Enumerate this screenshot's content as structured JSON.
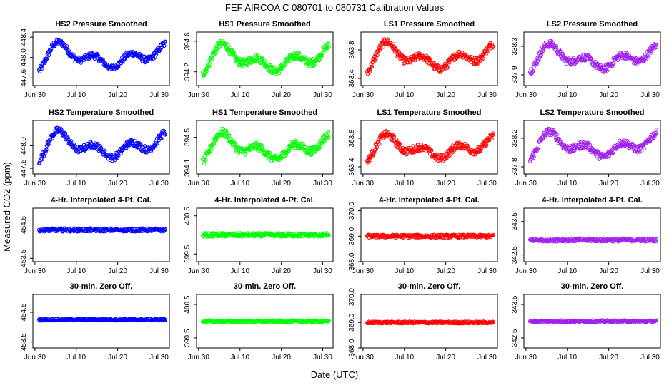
{
  "figure": {
    "title": "FEF   AIRCOA C   080701 to 080731   Calibration Values",
    "xlabel": "Date (UTC)",
    "ylabel": "Measured CO2 (ppm)"
  },
  "chart_data": [
    {
      "type": "scatter",
      "title": "HS2 Pressure Smoothed",
      "color": "#0000ff",
      "ylim": [
        447.45,
        448.5
      ],
      "yticks": [
        "447.6",
        "448.0",
        "448.4"
      ],
      "ytick_values": [
        447.6,
        448.0,
        448.4
      ],
      "pattern": "smooth",
      "center": 448.0,
      "amp": 0.36,
      "noise": 0.06,
      "xlim": [
        -0.5,
        32.5
      ],
      "xticks": [
        "Jun 30",
        "Jul 10",
        "Jul 20",
        "Jul 30"
      ],
      "xtick_values": [
        0,
        10,
        20,
        30
      ],
      "x": [
        1,
        31.5
      ]
    },
    {
      "type": "scatter",
      "title": "HS1 Pressure Smoothed",
      "color": "#00ff00",
      "ylim": [
        394.02,
        394.72
      ],
      "yticks": [
        "394.2",
        "394.6"
      ],
      "ytick_values": [
        394.2,
        394.6
      ],
      "pattern": "smooth",
      "center": 394.35,
      "amp": 0.25,
      "noise": 0.05,
      "xlim": [
        -0.5,
        32.5
      ],
      "xticks": [
        "Jun 30",
        "Jul 10",
        "Jul 20",
        "Jul 30"
      ],
      "xtick_values": [
        0,
        10,
        20,
        30
      ],
      "x": [
        1,
        31.5
      ]
    },
    {
      "type": "scatter",
      "title": "LS1 Pressure Smoothed",
      "color": "#ff0000",
      "ylim": [
        363.3,
        364.05
      ],
      "yticks": [
        "363.4",
        "363.8"
      ],
      "ytick_values": [
        363.4,
        363.8
      ],
      "pattern": "smooth",
      "center": 363.68,
      "amp": 0.27,
      "noise": 0.05,
      "xlim": [
        -0.5,
        32.5
      ],
      "xticks": [
        "Jun 30",
        "Jul 10",
        "Jul 20",
        "Jul 30"
      ],
      "xtick_values": [
        0,
        10,
        20,
        30
      ],
      "x": [
        1,
        31.5
      ]
    },
    {
      "type": "scatter",
      "title": "LS2 Pressure Smoothed",
      "color": "#a020f0",
      "ylim": [
        337.75,
        338.5
      ],
      "yticks": [
        "337.9",
        "338.3"
      ],
      "ytick_values": [
        337.9,
        338.3
      ],
      "pattern": "smooth",
      "center": 338.12,
      "amp": 0.25,
      "noise": 0.05,
      "xlim": [
        -0.5,
        32.5
      ],
      "xticks": [
        "Jun 30",
        "Jul 10",
        "Jul 20",
        "Jul 30"
      ],
      "xtick_values": [
        0,
        10,
        20,
        30
      ],
      "x": [
        1,
        31.5
      ]
    },
    {
      "type": "scatter",
      "title": "HS2 Temperature Smoothed",
      "color": "#0000ff",
      "ylim": [
        447.5,
        448.45
      ],
      "yticks": [
        "447.6",
        "448.0"
      ],
      "ytick_values": [
        447.6,
        448.0
      ],
      "pattern": "smooth",
      "center": 447.98,
      "amp": 0.34,
      "noise": 0.06,
      "xlim": [
        -0.5,
        32.5
      ],
      "xticks": [
        "Jun 30",
        "Jul 10",
        "Jul 20",
        "Jul 30"
      ],
      "xtick_values": [
        0,
        10,
        20,
        30
      ],
      "x": [
        1,
        31.5
      ]
    },
    {
      "type": "scatter",
      "title": "HS1 Temperature Smoothed",
      "color": "#00ff00",
      "ylim": [
        394.02,
        394.72
      ],
      "yticks": [
        "394.1",
        "394.5"
      ],
      "ytick_values": [
        394.1,
        394.5
      ],
      "pattern": "smooth",
      "center": 394.35,
      "amp": 0.25,
      "noise": 0.05,
      "xlim": [
        -0.5,
        32.5
      ],
      "xticks": [
        "Jun 30",
        "Jul 10",
        "Jul 20",
        "Jul 30"
      ],
      "xtick_values": [
        0,
        10,
        20,
        30
      ],
      "x": [
        1,
        31.5
      ]
    },
    {
      "type": "scatter",
      "title": "LS1 Temperature Smoothed",
      "color": "#ff0000",
      "ylim": [
        363.3,
        364.05
      ],
      "yticks": [
        "363.4",
        "363.8"
      ],
      "ytick_values": [
        363.4,
        363.8
      ],
      "pattern": "smooth",
      "center": 363.65,
      "amp": 0.24,
      "noise": 0.05,
      "xlim": [
        -0.5,
        32.5
      ],
      "xticks": [
        "Jun 30",
        "Jul 10",
        "Jul 20",
        "Jul 30"
      ],
      "xtick_values": [
        0,
        10,
        20,
        30
      ],
      "x": [
        1,
        31.5
      ]
    },
    {
      "type": "scatter",
      "title": "LS2 Temperature Smoothed",
      "color": "#a020f0",
      "ylim": [
        337.7,
        338.45
      ],
      "yticks": [
        "337.8",
        "338.2"
      ],
      "ytick_values": [
        337.8,
        338.2
      ],
      "pattern": "smooth",
      "center": 338.08,
      "amp": 0.25,
      "noise": 0.05,
      "xlim": [
        -0.5,
        32.5
      ],
      "xticks": [
        "Jun 30",
        "Jul 10",
        "Jul 20",
        "Jul 30"
      ],
      "xtick_values": [
        0,
        10,
        20,
        30
      ],
      "x": [
        1,
        31.5
      ]
    },
    {
      "type": "scatter",
      "title": "4-Hr. Interpolated 4-Pt. Cal.",
      "color": "#0000ff",
      "ylim": [
        453.4,
        455.0
      ],
      "yticks": [
        "453.5",
        "454.5"
      ],
      "ytick_values": [
        453.5,
        454.5
      ],
      "pattern": "flat",
      "center": 454.35,
      "amp": 0,
      "noise": 0.05,
      "xlim": [
        -0.5,
        32.5
      ],
      "xticks": [
        "Jun 30",
        "Jul 10",
        "Jul 20",
        "Jul 30"
      ],
      "xtick_values": [
        0,
        10,
        20,
        30
      ],
      "x": [
        1,
        31.5
      ]
    },
    {
      "type": "scatter",
      "title": "4-Hr. Interpolated 4-Pt. Cal.",
      "color": "#00ff00",
      "ylim": [
        399.3,
        400.7
      ],
      "yticks": [
        "399.5",
        "400.5"
      ],
      "ytick_values": [
        399.5,
        400.5
      ],
      "pattern": "flat",
      "center": 400.0,
      "amp": 0,
      "noise": 0.05,
      "xlim": [
        -0.5,
        32.5
      ],
      "xticks": [
        "Jun 30",
        "Jul 10",
        "Jul 20",
        "Jul 30"
      ],
      "xtick_values": [
        0,
        10,
        20,
        30
      ],
      "x": [
        1,
        31.5
      ]
    },
    {
      "type": "scatter",
      "title": "4-Hr. Interpolated 4-Pt. Cal.",
      "color": "#ff0000",
      "ylim": [
        368.0,
        370.1
      ],
      "yticks": [
        "368.0",
        "369.0",
        "370.0"
      ],
      "ytick_values": [
        368.0,
        369.0,
        370.0
      ],
      "pattern": "flat",
      "center": 369.0,
      "amp": 0,
      "noise": 0.06,
      "xlim": [
        -0.5,
        32.5
      ],
      "xticks": [
        "Jun 30",
        "Jul 10",
        "Jul 20",
        "Jul 30"
      ],
      "xtick_values": [
        0,
        10,
        20,
        30
      ],
      "x": [
        1,
        31.5
      ]
    },
    {
      "type": "scatter",
      "title": "4-Hr. Interpolated 4-Pt. Cal.",
      "color": "#a020f0",
      "ylim": [
        342.3,
        343.9
      ],
      "yticks": [
        "342.5",
        "343.5"
      ],
      "ytick_values": [
        342.5,
        343.5
      ],
      "pattern": "flat",
      "center": 342.95,
      "amp": 0,
      "noise": 0.05,
      "xlim": [
        -0.5,
        32.5
      ],
      "xticks": [
        "Jun 30",
        "Jul 10",
        "Jul 20",
        "Jul 30"
      ],
      "xtick_values": [
        0,
        10,
        20,
        30
      ],
      "x": [
        1,
        31.5
      ]
    },
    {
      "type": "scatter",
      "title": "30-min. Zero Off.",
      "color": "#0000ff",
      "ylim": [
        453.3,
        455.1
      ],
      "yticks": [
        "453.5",
        "454.5"
      ],
      "ytick_values": [
        453.5,
        454.5
      ],
      "pattern": "flat",
      "center": 454.25,
      "amp": 0,
      "noise": 0.03,
      "xlim": [
        -0.5,
        32.5
      ],
      "xticks": [
        "Jun 30",
        "Jul 10",
        "Jul 20",
        "Jul 30"
      ],
      "xtick_values": [
        0,
        10,
        20,
        30
      ],
      "x": [
        1,
        31.5
      ]
    },
    {
      "type": "scatter",
      "title": "30-min. Zero Off.",
      "color": "#00ff00",
      "ylim": [
        399.2,
        400.8
      ],
      "yticks": [
        "399.5",
        "400.5"
      ],
      "ytick_values": [
        399.5,
        400.5
      ],
      "pattern": "flat",
      "center": 400.0,
      "amp": 0,
      "noise": 0.03,
      "xlim": [
        -0.5,
        32.5
      ],
      "xticks": [
        "Jun 30",
        "Jul 10",
        "Jul 20",
        "Jul 30"
      ],
      "xtick_values": [
        0,
        10,
        20,
        30
      ],
      "x": [
        1,
        31.5
      ]
    },
    {
      "type": "scatter",
      "title": "30-min. Zero Off.",
      "color": "#ff0000",
      "ylim": [
        368.0,
        370.1
      ],
      "yticks": [
        "368.0",
        "369.0",
        "370.0"
      ],
      "ytick_values": [
        368.0,
        369.0,
        370.0
      ],
      "pattern": "flat",
      "center": 369.0,
      "amp": 0,
      "noise": 0.04,
      "xlim": [
        -0.5,
        32.5
      ],
      "xticks": [
        "Jun 30",
        "Jul 10",
        "Jul 20",
        "Jul 30"
      ],
      "xtick_values": [
        0,
        10,
        20,
        30
      ],
      "x": [
        1,
        31.5
      ]
    },
    {
      "type": "scatter",
      "title": "30-min. Zero Off.",
      "color": "#a020f0",
      "ylim": [
        342.2,
        343.8
      ],
      "yticks": [
        "342.5",
        "343.5"
      ],
      "ytick_values": [
        342.5,
        343.5
      ],
      "pattern": "flat",
      "center": 343.0,
      "amp": 0,
      "noise": 0.03,
      "xlim": [
        -0.5,
        32.5
      ],
      "xticks": [
        "Jun 30",
        "Jul 10",
        "Jul 20",
        "Jul 30"
      ],
      "xtick_values": [
        0,
        10,
        20,
        30
      ],
      "x": [
        1,
        31.5
      ]
    }
  ]
}
